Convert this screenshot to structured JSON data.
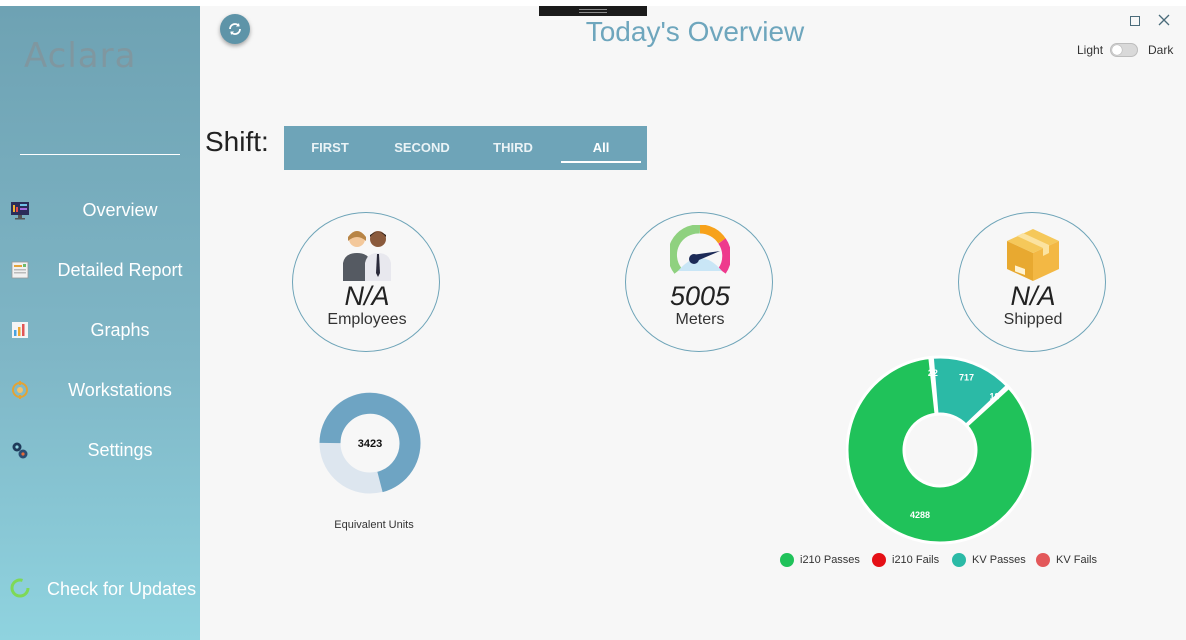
{
  "sidebar": {
    "logo": "Aclara",
    "items": [
      {
        "label": "Overview",
        "icon": "monitor-dashboard-icon"
      },
      {
        "label": "Detailed Report",
        "icon": "report-icon"
      },
      {
        "label": "Graphs",
        "icon": "bar-chart-icon"
      },
      {
        "label": "Workstations",
        "icon": "workstation-icon"
      },
      {
        "label": "Settings",
        "icon": "gears-icon"
      }
    ],
    "check_updates": "Check for Updates"
  },
  "header": {
    "title": "Today's Overview",
    "theme_light": "Light",
    "theme_dark": "Dark",
    "theme_mode": "light"
  },
  "shift": {
    "label": "Shift:",
    "tabs": [
      "FIRST",
      "SECOND",
      "THIRD",
      "All"
    ],
    "selected": "All"
  },
  "stats": {
    "employees": {
      "value": "N/A",
      "label": "Employees"
    },
    "meters": {
      "value": "5005",
      "label": "Meters"
    },
    "shipped": {
      "value": "N/A",
      "label": "Shipped"
    }
  },
  "equivalent_units": {
    "center_value": "3423",
    "label": "Equivalent Units",
    "colors": {
      "filled": "#6ea4c3",
      "remaining": "#dde6ef"
    }
  },
  "chart_data": {
    "type": "pie",
    "donut": true,
    "categories": [
      "i210 Passes",
      "i210 Fails",
      "KV Passes",
      "KV Fails"
    ],
    "values": [
      4288,
      22,
      717,
      18
    ],
    "data_labels": [
      "4288",
      "22",
      "717",
      "18"
    ],
    "colors": [
      "#20c25a",
      "#e51016",
      "#2bbaa6",
      "#e3585a"
    ],
    "legend_position": "bottom"
  }
}
